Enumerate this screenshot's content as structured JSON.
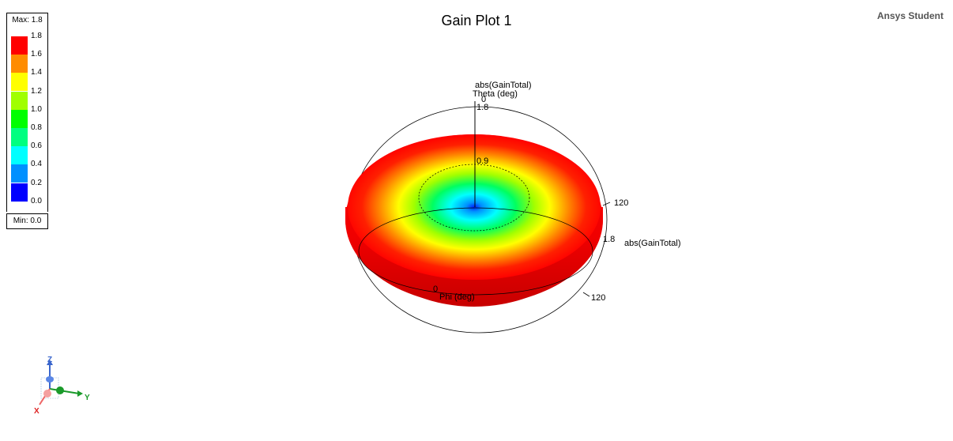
{
  "chart_data": {
    "type": "3d-polar",
    "title": "Gain Plot 1",
    "watermark": "Ansys Student",
    "quantity": "abs(GainTotal)",
    "colorbar": {
      "max_label": "Max: 1.8",
      "min_label": "Min: 0.0",
      "min": 0.0,
      "max": 1.8,
      "ticks": [
        "1.8",
        "1.6",
        "1.4",
        "1.2",
        "1.0",
        "0.8",
        "0.6",
        "0.4",
        "0.2",
        "0.0"
      ],
      "colors": [
        "#ff0000",
        "#ff8c00",
        "#ffff00",
        "#a0ff00",
        "#00ff00",
        "#00ff80",
        "#00ffff",
        "#0090ff",
        "#0000ff"
      ]
    },
    "axes": {
      "theta_label": "Theta (deg)",
      "theta_zero": "0",
      "phi_label": "Phi (deg)",
      "phi_zero": "0",
      "theta_tick": "120",
      "phi_tick": "120",
      "radial_ticks": [
        "1.8",
        "0.9"
      ],
      "radial_label_top": "abs(GainTotal)",
      "radial_label_side": "abs(GainTotal)",
      "radial_side_tick": "1.8"
    },
    "triad": {
      "x": "X",
      "y": "Y",
      "z": "Z"
    }
  }
}
